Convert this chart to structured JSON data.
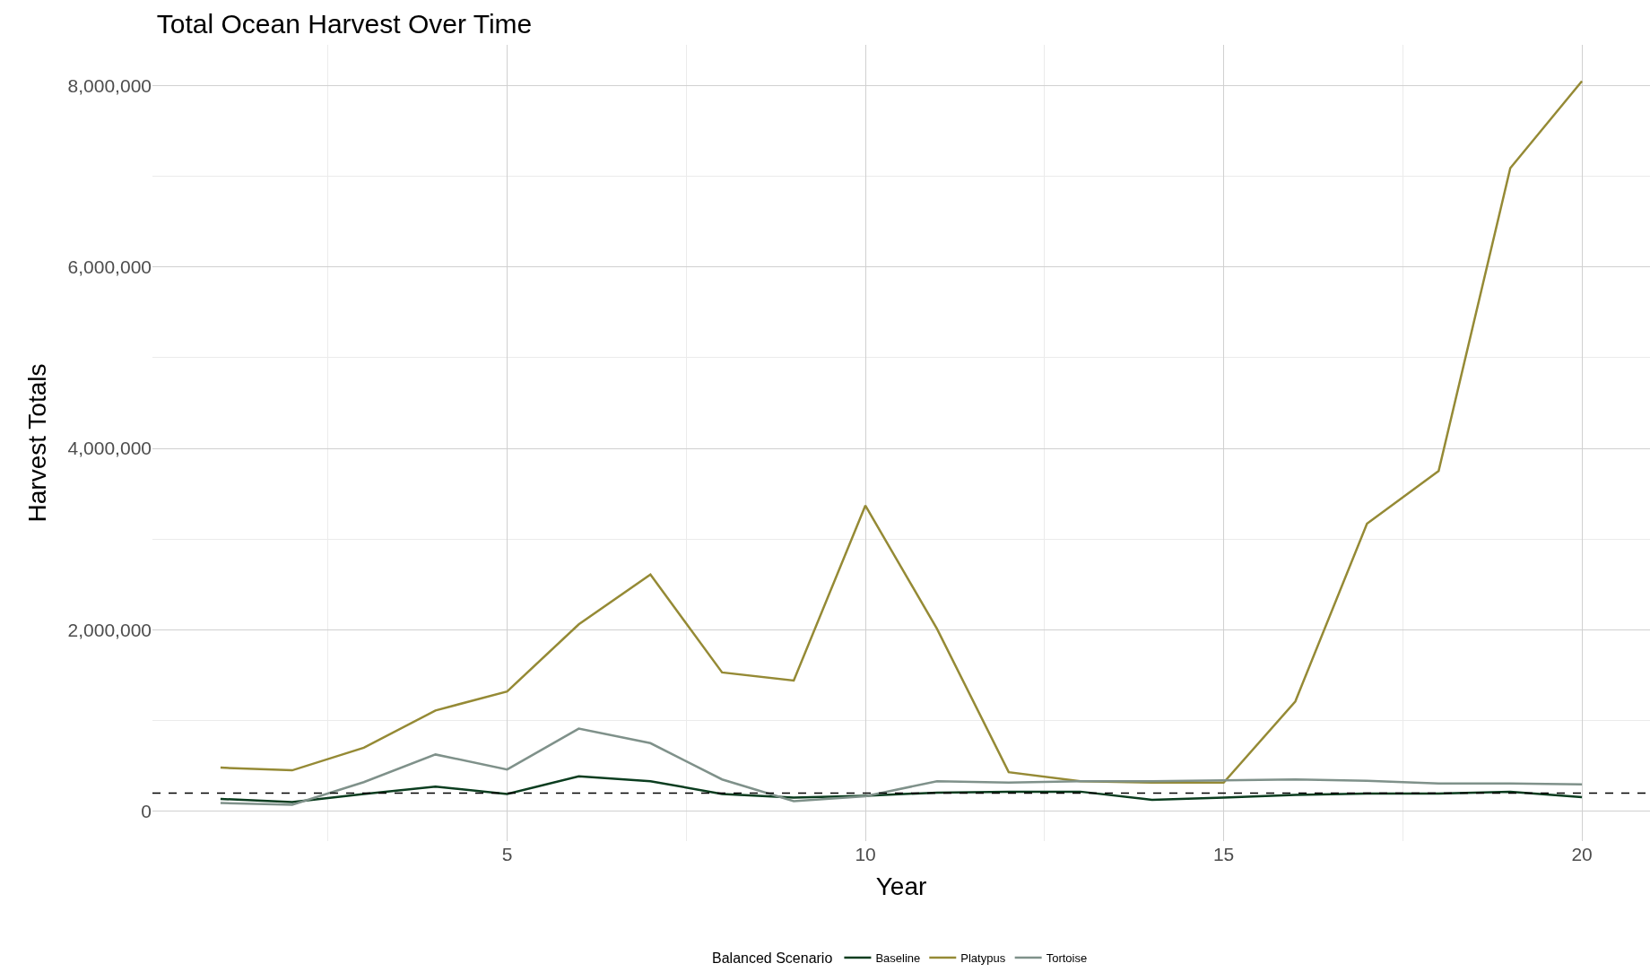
{
  "chart_data": {
    "type": "line",
    "title": "Total Ocean Harvest Over Time",
    "xlabel": "Year",
    "ylabel": "Harvest Totals",
    "legend_title": "Balanced Scenario",
    "x": [
      1,
      2,
      3,
      4,
      5,
      6,
      7,
      8,
      9,
      10,
      11,
      12,
      13,
      14,
      15,
      16,
      17,
      18,
      19,
      20
    ],
    "series": [
      {
        "name": "Baseline",
        "color": "#0b3d1f",
        "values": [
          135000,
          100000,
          190000,
          270000,
          190000,
          385000,
          330000,
          190000,
          150000,
          170000,
          205000,
          215000,
          215000,
          125000,
          150000,
          180000,
          195000,
          195000,
          215000,
          155000
        ]
      },
      {
        "name": "Platypus",
        "color": "#958a35",
        "values": [
          480000,
          450000,
          700000,
          1110000,
          1320000,
          2060000,
          2610000,
          1530000,
          1440000,
          3370000,
          2010000,
          430000,
          330000,
          315000,
          315000,
          1210000,
          3170000,
          3750000,
          7090000,
          8050000
        ]
      },
      {
        "name": "Tortoise",
        "color": "#7f918a",
        "values": [
          90000,
          70000,
          320000,
          625000,
          460000,
          910000,
          750000,
          350000,
          110000,
          165000,
          330000,
          315000,
          330000,
          330000,
          340000,
          350000,
          335000,
          305000,
          305000,
          295000
        ]
      }
    ],
    "xlim": [
      0.05,
      20.95
    ],
    "xticks": [
      5,
      10,
      15,
      20
    ],
    "ylim": [
      -330000,
      8450000
    ],
    "yticks": [
      {
        "value": 0,
        "label": "0"
      },
      {
        "value": 2000000,
        "label": "2,000,000"
      },
      {
        "value": 4000000,
        "label": "4,000,000"
      },
      {
        "value": 6000000,
        "label": "6,000,000"
      },
      {
        "value": 8000000,
        "label": "8,000,000"
      }
    ],
    "ref_lines": [
      {
        "axis": "y",
        "value": 200000,
        "label": null,
        "color": "#000000",
        "line_style": "dashed"
      }
    ],
    "grid": true,
    "legend": "bottom",
    "line_style": "solid",
    "marker": "none"
  }
}
